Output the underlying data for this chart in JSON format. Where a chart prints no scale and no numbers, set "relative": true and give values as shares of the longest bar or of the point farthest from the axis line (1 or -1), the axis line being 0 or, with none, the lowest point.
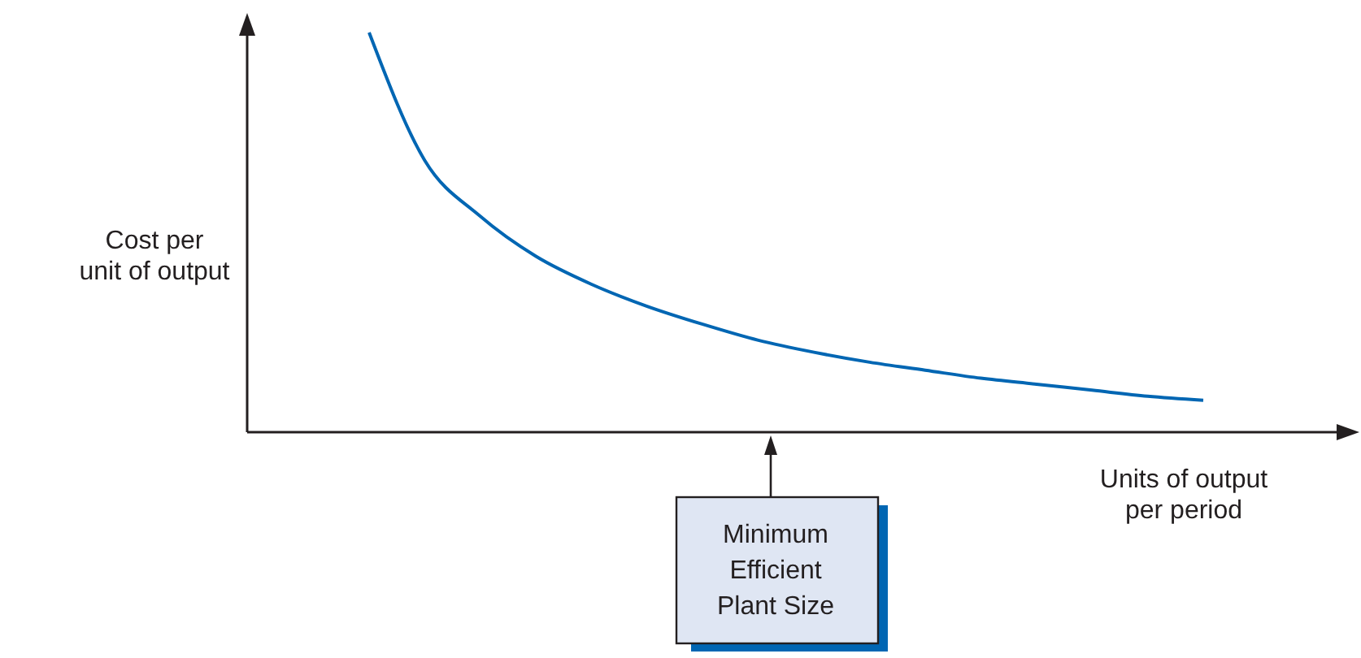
{
  "chart_data": {
    "type": "line",
    "relative": true,
    "ylabel": "Cost per\nunit of output",
    "xlabel": "Units of output\nper period",
    "categories": [
      null,
      null,
      null,
      null,
      null,
      null,
      null,
      null,
      null,
      null,
      null,
      null,
      null,
      null,
      null,
      null
    ],
    "series": [
      {
        "color": "#0066b3",
        "values": [
          1,
          0.68,
          0.54,
          0.44,
          0.37,
          0.315,
          0.27,
          0.23,
          0.2,
          0.175,
          0.155,
          0.135,
          0.12,
          0.105,
          0.09,
          0.08
        ]
      }
    ],
    "annotations": [
      "Minimum\nEfficient\nPlant Size"
    ],
    "marker": "none",
    "line_style": "solid"
  }
}
